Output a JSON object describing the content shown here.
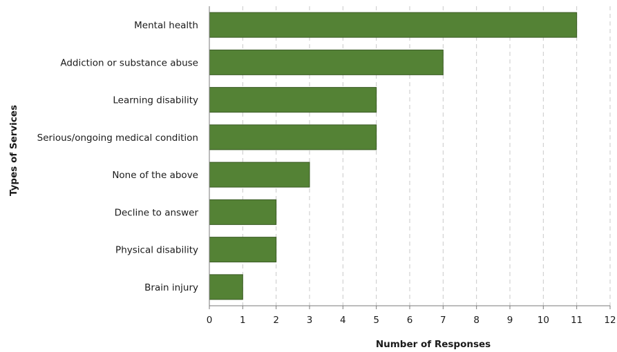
{
  "chart_data": {
    "type": "bar",
    "orientation": "horizontal",
    "categories": [
      "Mental health",
      "Addiction or substance abuse",
      "Learning disability",
      "Serious/ongoing medical condition",
      "None of the above",
      "Decline to answer",
      "Physical disability",
      "Brain injury"
    ],
    "values": [
      11,
      7,
      5,
      5,
      3,
      2,
      2,
      1
    ],
    "xlabel": "Number of Responses",
    "ylabel": "Types of Services",
    "xlim": [
      0,
      12
    ],
    "xticks": [
      "0",
      "1",
      "2",
      "3",
      "4",
      "5",
      "6",
      "7",
      "8",
      "9",
      "10",
      "11",
      "12"
    ],
    "grid": "vertical dashed",
    "bar_color": "#548235"
  }
}
